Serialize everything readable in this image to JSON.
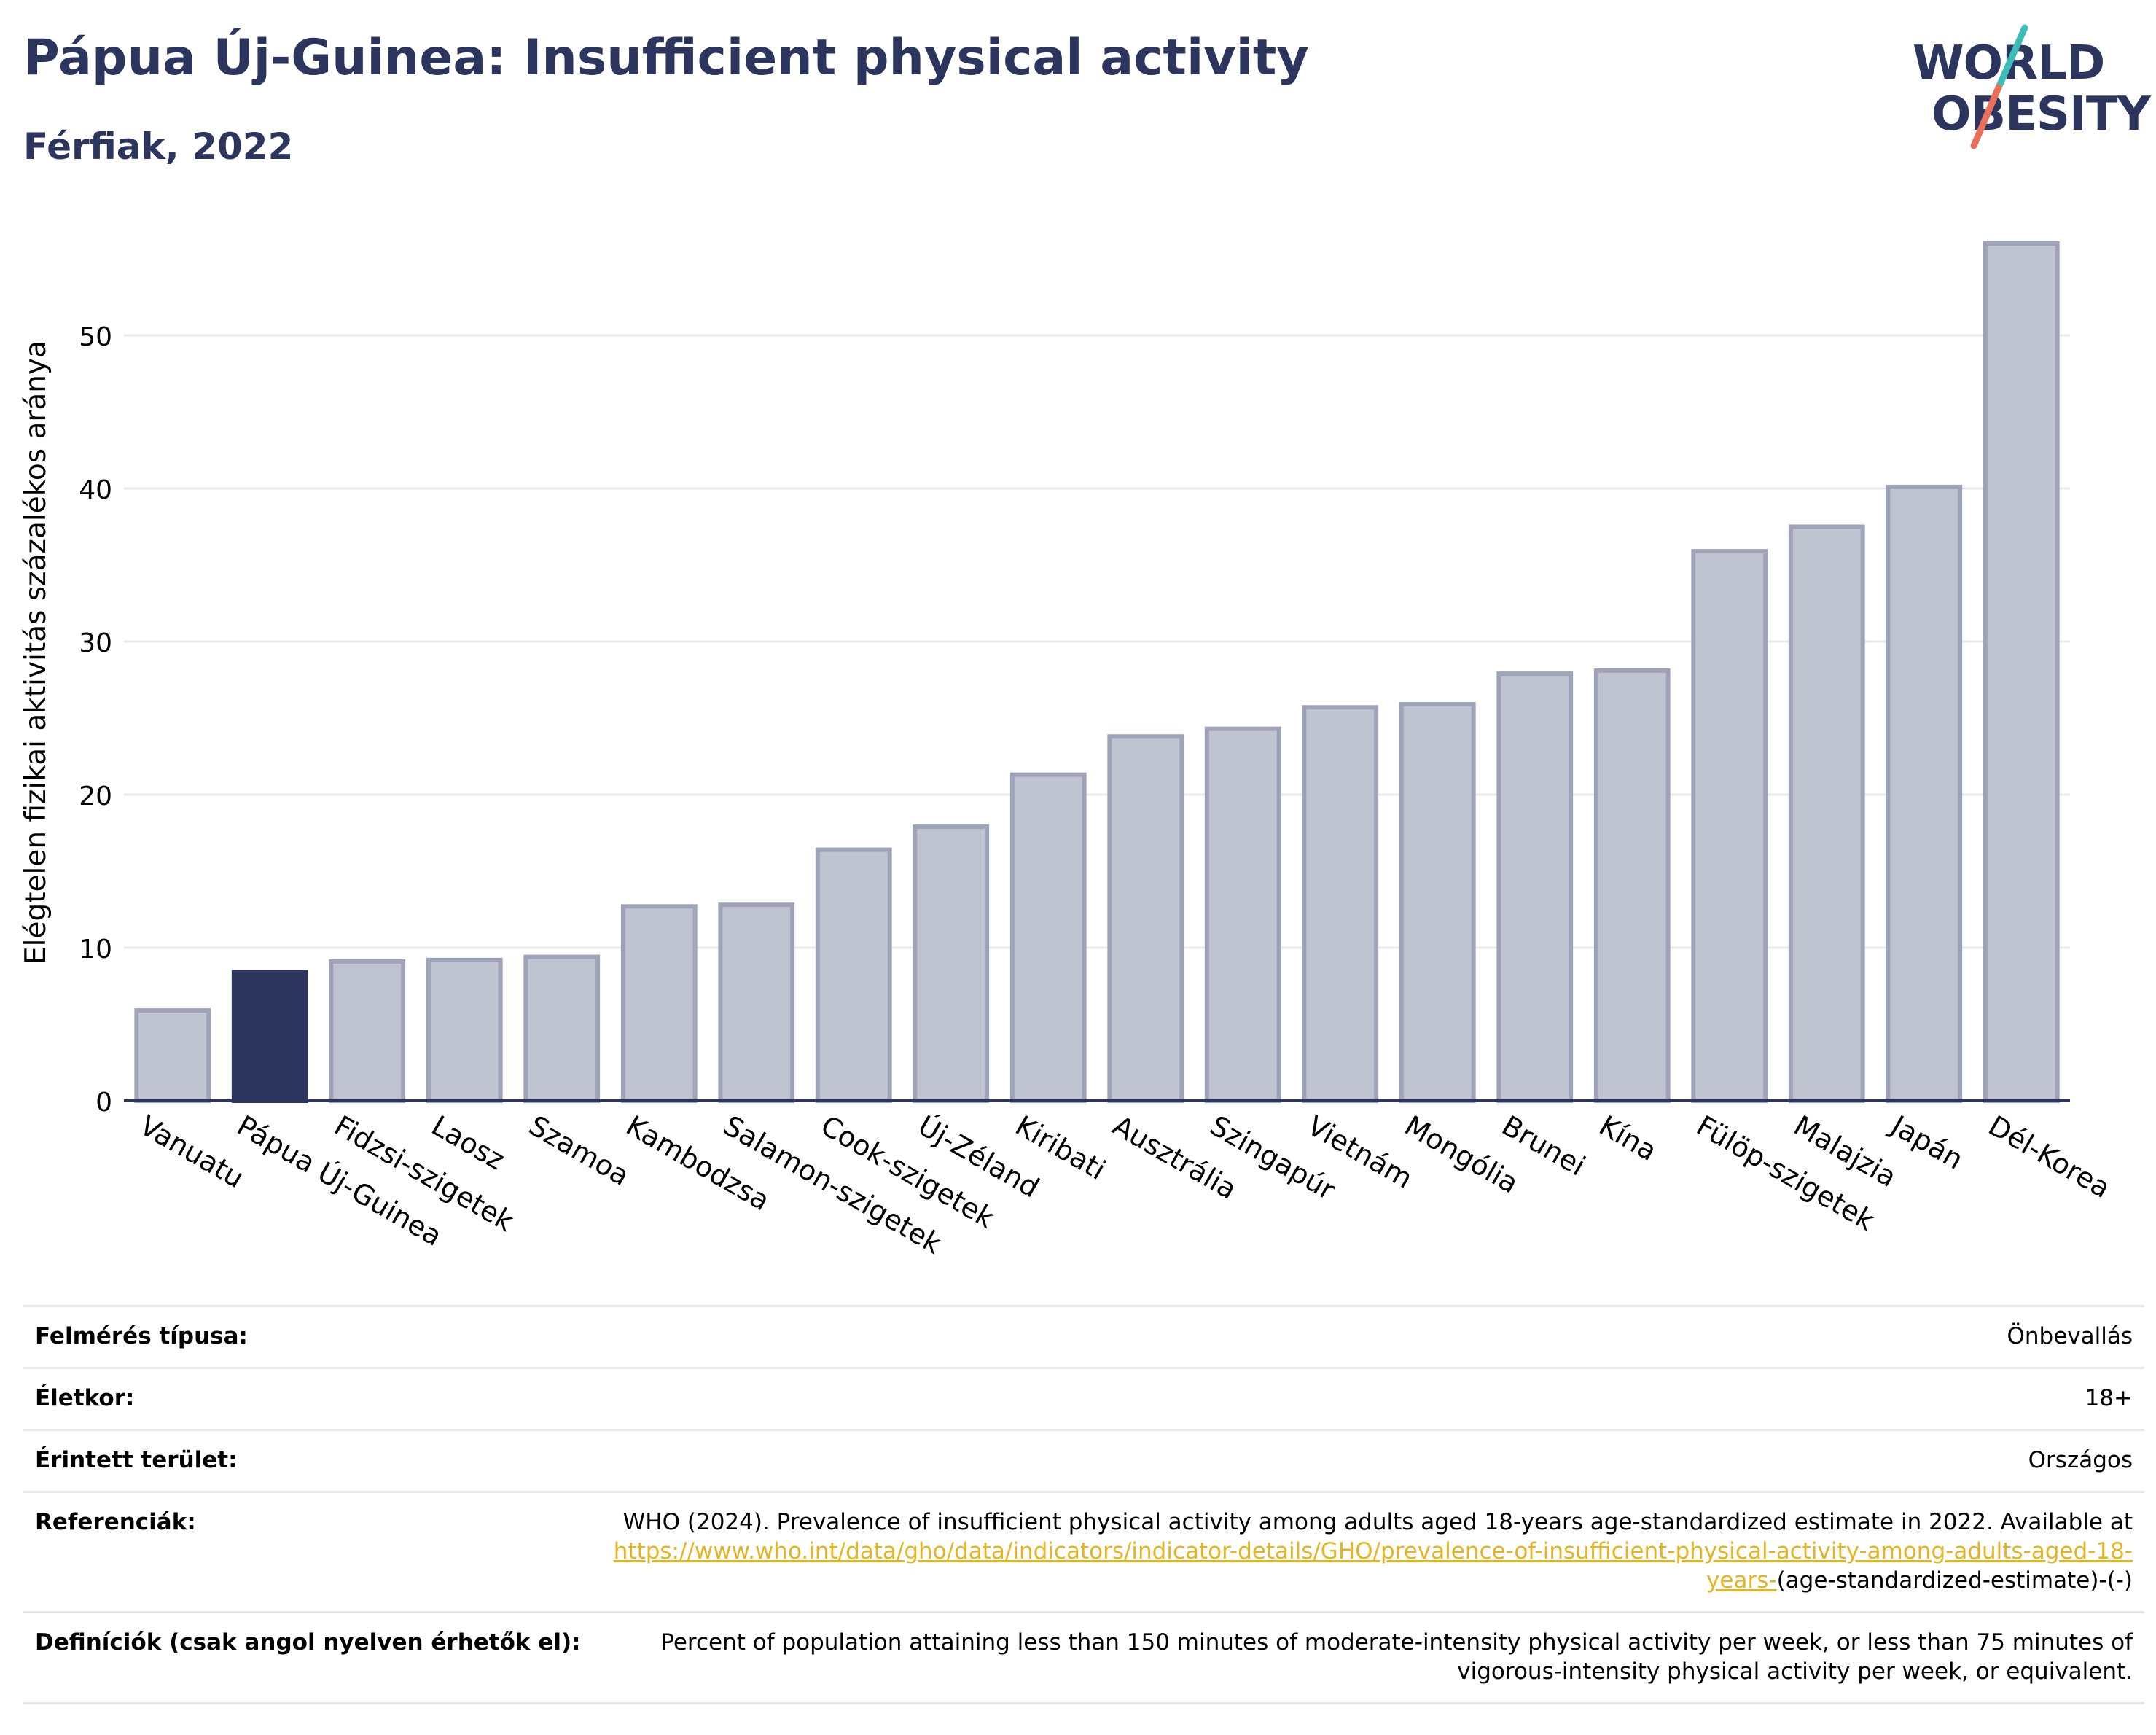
{
  "header": {
    "title": "Pápua Új-Guinea: Insufficient physical activity",
    "subtitle": "Férfiak, 2022"
  },
  "logo": {
    "line1": "WORLD",
    "line2": "OBESITY",
    "colors": {
      "text": "#2b355d",
      "slash_top": "#3dbdb6",
      "slash_bottom": "#e8705b"
    }
  },
  "chart_data": {
    "type": "bar",
    "title": "",
    "xlabel": "",
    "ylabel": "Elégtelen fizikai aktivitás százalékos aránya",
    "ylim": [
      0,
      58
    ],
    "yticks": [
      0,
      10,
      20,
      30,
      40,
      50
    ],
    "grid": true,
    "highlight": "Pápua Új-Guinea",
    "colors": {
      "bar": "#c0c3d0",
      "bar_edge": "#9ea3ba",
      "highlight": "#2b355d",
      "axis": "#2b355d",
      "grid": "#e9e9e9"
    },
    "categories": [
      "Vanuatu",
      "Pápua Új-Guinea",
      "Fidzsi-szigetek",
      "Laosz",
      "Szamoa",
      "Kambodzsa",
      "Salamon-szigetek",
      "Cook-szigetek",
      "Új-Zéland",
      "Kiribati",
      "Ausztrália",
      "Szingapúr",
      "Vietnám",
      "Mongólia",
      "Brunei",
      "Kína",
      "Fülöp-szigetek",
      "Malajzia",
      "Japán",
      "Dél-Korea"
    ],
    "values": [
      5.9,
      8.4,
      9.1,
      9.2,
      9.4,
      12.7,
      12.8,
      16.4,
      17.9,
      21.3,
      23.8,
      24.3,
      25.7,
      25.9,
      27.9,
      28.1,
      35.9,
      37.5,
      40.1,
      56.0
    ]
  },
  "info": {
    "rows": [
      {
        "label": "Felmérés típusa:",
        "value": "Önbevallás"
      },
      {
        "label": "Életkor:",
        "value": "18+"
      },
      {
        "label": "Érintett terület:",
        "value": "Országos"
      }
    ],
    "references": {
      "label": "Referenciák:",
      "text": "WHO (2024). Prevalence of insufficient physical activity among adults aged 18-years age-standardized estimate in 2022. Available at ",
      "link": "https://www.who.int/data/gho/data/indicators/indicator-details/GHO/prevalence-of-insufficient-physical-activity-among-adults-aged-18-years-",
      "suffix": "(age-standardized-estimate)-(-)"
    },
    "definitions": {
      "label": "Definíciók (csak angol nyelven érhetők el):",
      "value": "Percent of population attaining less than 150 minutes of moderate-intensity physical activity per week, or less than 75 minutes of vigorous-intensity physical activity per week, or equivalent."
    }
  }
}
